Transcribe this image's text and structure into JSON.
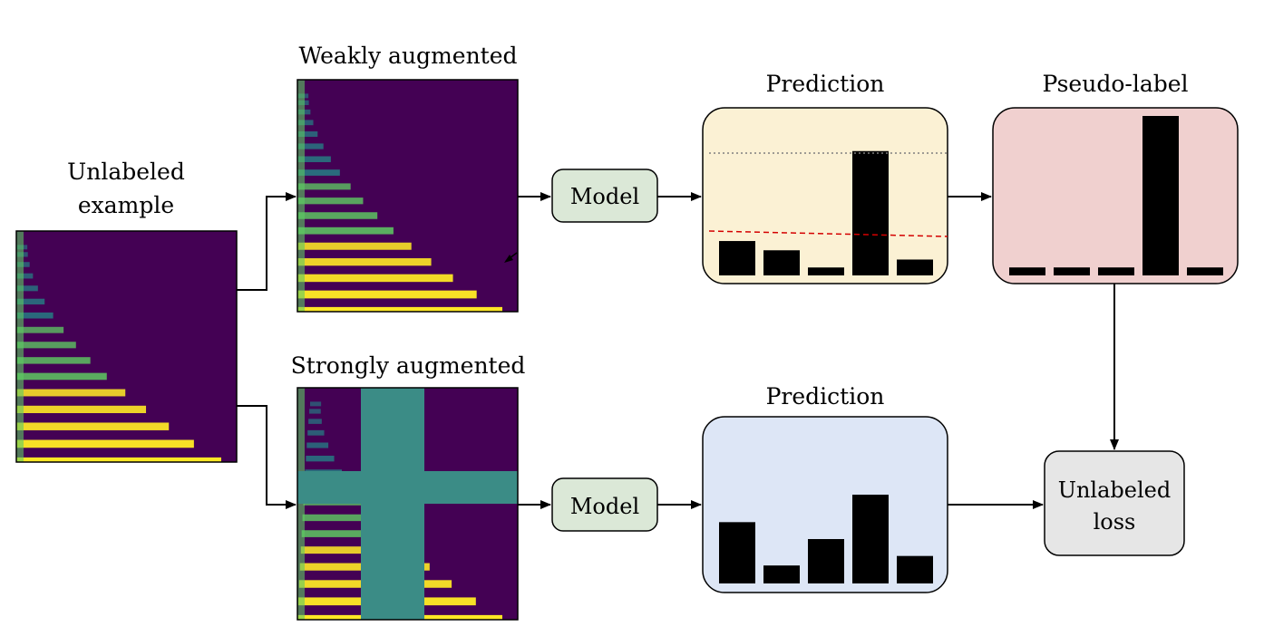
{
  "labels": {
    "unlabeled_line1": "Unlabeled",
    "unlabeled_line2": "example",
    "weak": "Weakly augmented",
    "strong": "Strongly augmented",
    "prediction_top": "Prediction",
    "pseudo": "Pseudo-label",
    "prediction_bottom": "Prediction",
    "model_top": "Model",
    "model_bottom": "Model",
    "loss_line1": "Unlabeled",
    "loss_line2": "loss"
  },
  "colors": {
    "spectrogram_bg": "#440154",
    "band_bright": "#fde725",
    "band_mid": "#5ec962",
    "band_dim": "#21918c",
    "mask": "#3b8c86",
    "prediction_top_bg": "#fbf1d4",
    "pseudo_bg": "#f0d0cf",
    "prediction_bottom_bg": "#dde6f6",
    "model_bg": "#dbe8d7",
    "loss_bg": "#e6e6e6",
    "threshold_dotted": "#7f7f7f",
    "threshold_dashed": "#d40000"
  },
  "chart_data": [
    {
      "name": "prediction_top",
      "type": "bar",
      "values": [
        0.26,
        0.19,
        0.06,
        0.94,
        0.12
      ]
    },
    {
      "name": "pseudo_label",
      "type": "bar",
      "values": [
        0.05,
        0.05,
        0.05,
        1.0,
        0.05
      ]
    },
    {
      "name": "prediction_bottom",
      "type": "bar",
      "values": [
        0.58,
        0.17,
        0.42,
        0.84,
        0.26
      ]
    }
  ]
}
